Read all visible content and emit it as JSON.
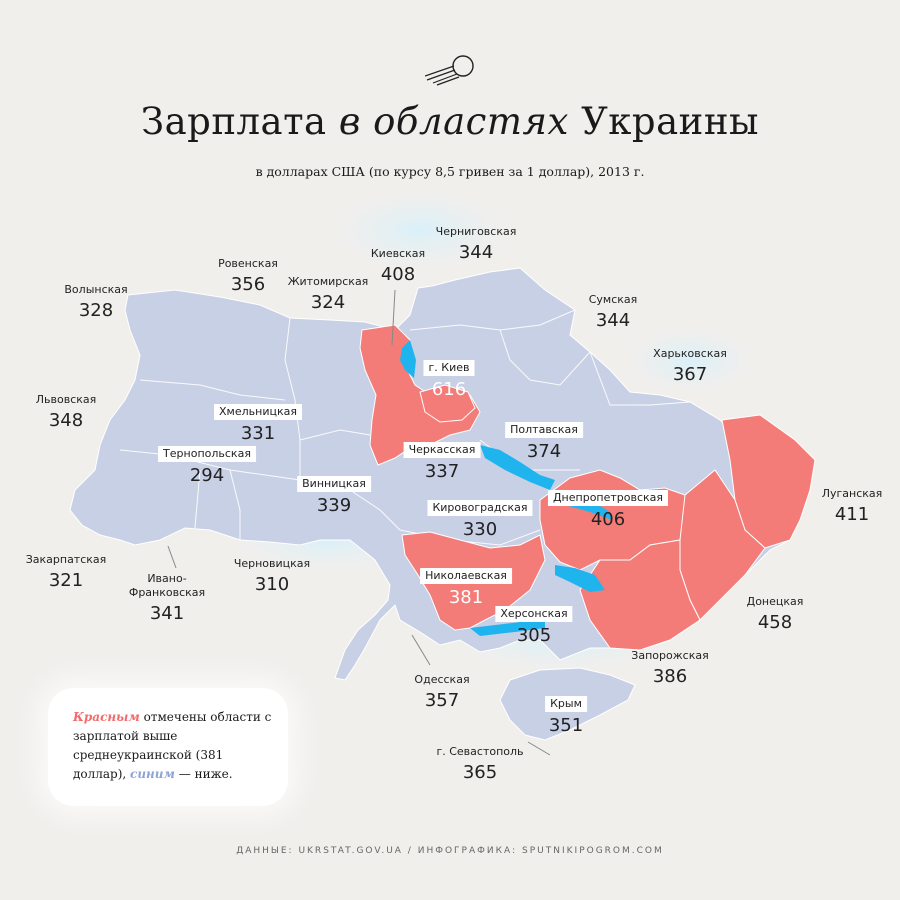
{
  "title": {
    "prefix": "Зарплата ",
    "italic": "в областях",
    "suffix": " Украины"
  },
  "subtitle": "в долларах США (по курсу 8,5 гривен за 1 доллар), 2013 г.",
  "colors": {
    "above_average": "#f47c78",
    "below_average": "#c8d0e6",
    "water": "#1fb4ee",
    "background": "#f1efec"
  },
  "regions": [
    {
      "name": "Волынская",
      "value": "328",
      "above": false
    },
    {
      "name": "Ровенская",
      "value": "356",
      "above": false
    },
    {
      "name": "Житомирская",
      "value": "324",
      "above": false
    },
    {
      "name": "Киевская",
      "value": "408",
      "above": true
    },
    {
      "name": "Черниговская",
      "value": "344",
      "above": false
    },
    {
      "name": "Сумская",
      "value": "344",
      "above": false
    },
    {
      "name": "Харьковская",
      "value": "367",
      "above": false
    },
    {
      "name": "Львовская",
      "value": "348",
      "above": false
    },
    {
      "name": "Хмельницкая",
      "value": "331",
      "above": false
    },
    {
      "name": "г. Киев",
      "value": "616",
      "above": true
    },
    {
      "name": "Полтавская",
      "value": "374",
      "above": false
    },
    {
      "name": "Тернопольская",
      "value": "294",
      "above": false
    },
    {
      "name": "Черкасская",
      "value": "337",
      "above": false
    },
    {
      "name": "Винницкая",
      "value": "339",
      "above": false
    },
    {
      "name": "Днепропетровская",
      "value": "406",
      "above": true
    },
    {
      "name": "Луганская",
      "value": "411",
      "above": true
    },
    {
      "name": "Кировоградская",
      "value": "330",
      "above": false
    },
    {
      "name": "Закарпатская",
      "value": "321",
      "above": false
    },
    {
      "name": "Ивано-Франковская",
      "value": "341",
      "above": false
    },
    {
      "name": "Черновицкая",
      "value": "310",
      "above": false
    },
    {
      "name": "Николаевская",
      "value": "381",
      "above": true
    },
    {
      "name": "Херсонская",
      "value": "305",
      "above": false
    },
    {
      "name": "Донецкая",
      "value": "458",
      "above": true
    },
    {
      "name": "Запорожская",
      "value": "386",
      "above": true
    },
    {
      "name": "Одесская",
      "value": "357",
      "above": false
    },
    {
      "name": "Крым",
      "value": "351",
      "above": false
    },
    {
      "name": "г. Севастополь",
      "value": "365",
      "above": false
    }
  ],
  "legend": {
    "red_word": "Красным",
    "part1": " отмечены области с зарплатой выше среднеукраинской (381 доллар), ",
    "blue_word": "синим",
    "part2": " — ниже."
  },
  "footer": "ДАННЫЕ: UKRSTAT.GOV.UA / ИНФОГРАФИКА: SPUTNIKIPOGROM.COM"
}
